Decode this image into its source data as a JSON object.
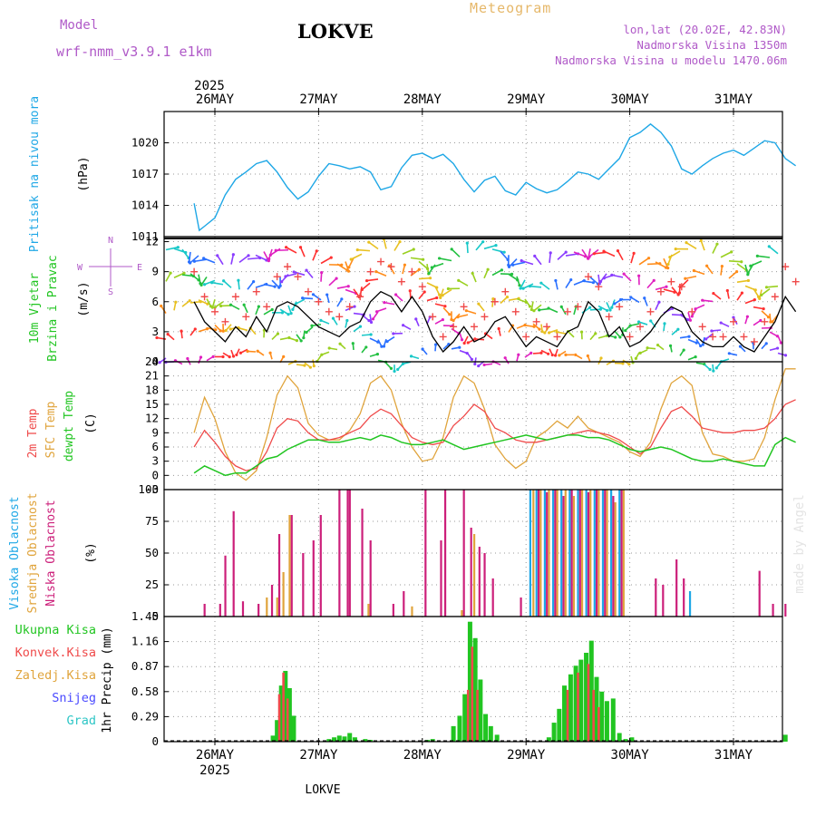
{
  "header": {
    "model_label": "Model",
    "model_name": "wrf-nmm_v3.9.1  e1km",
    "station": "LOKVE",
    "title": "Meteogram",
    "coords": "lon,lat (20.02E, 42.83N)",
    "elevation": "Nadmorska Visina 1350m",
    "model_elevation": "Nadmorska Visina u modelu 1470.06m"
  },
  "footer": {
    "station": "LOKVE",
    "watermark": "made by Angel"
  },
  "colors": {
    "pressure": "#1ea7e6",
    "temp2m": "#ef4a4a",
    "sfc": "#e0a43c",
    "dew": "#21c521",
    "wind": "#000000",
    "gust": "#ef4a4a",
    "high": "#1ea7e6",
    "mid": "#e0a43c",
    "low": "#cc1f7a",
    "precip": "#21c521",
    "conv": "#ef4a4a"
  },
  "time_axis": {
    "year": "2025",
    "days": [
      "26MAY",
      "27MAY",
      "28MAY",
      "29MAY",
      "30MAY",
      "31MAY"
    ]
  },
  "compass": {
    "n": "N",
    "s": "S",
    "w": "W",
    "e": "E"
  },
  "panels": {
    "pressure": {
      "label": "Pritisak na nivou mora",
      "unit": "(hPa)"
    },
    "wind": {
      "label1": "10m Vjetar",
      "label2": "Brzina i Pravac",
      "unit": "(m/s)"
    },
    "temp": {
      "label1": "2m Temp",
      "label2": "SFC Temp",
      "label3": "dewpt Temp",
      "unit": "(C)"
    },
    "cloud": {
      "label1": "Visoka Oblacnost",
      "label2": "Srednja Oblacnost",
      "label3": "Niska Oblacnost",
      "unit": "(%)"
    },
    "precip": {
      "legend": [
        "Ukupna Kisa",
        "Konvek.Kisa",
        "Zaledj.Kisa",
        "Snijeg",
        "Grad"
      ],
      "unit": "1hr Precip (mm)"
    }
  },
  "chart_data": [
    {
      "type": "line",
      "name": "pressure",
      "x_unit": "days since 26MAY 00UTC",
      "ylim": [
        1011,
        1023
      ],
      "yticks": [
        1011,
        1014,
        1017,
        1020
      ],
      "x": [
        -0.2,
        -0.15,
        -0.1,
        0.0,
        0.1,
        0.2,
        0.3,
        0.4,
        0.5,
        0.6,
        0.7,
        0.8,
        0.9,
        1.0,
        1.1,
        1.2,
        1.3,
        1.4,
        1.5,
        1.6,
        1.7,
        1.8,
        1.9,
        2.0,
        2.1,
        2.2,
        2.3,
        2.4,
        2.5,
        2.6,
        2.7,
        2.8,
        2.9,
        3.0,
        3.1,
        3.2,
        3.3,
        3.4,
        3.5,
        3.6,
        3.7,
        3.8,
        3.9,
        4.0,
        4.1,
        4.2,
        4.3,
        4.4,
        4.5,
        4.6,
        4.7,
        4.8,
        4.9,
        5.0,
        5.1,
        5.2,
        5.3,
        5.4,
        5.5,
        5.6
      ],
      "series": [
        {
          "name": "pressure",
          "values": [
            1014.2,
            1011.6,
            1012.0,
            1012.8,
            1015.0,
            1016.5,
            1017.2,
            1018.0,
            1018.3,
            1017.2,
            1015.7,
            1014.6,
            1015.3,
            1016.8,
            1018.0,
            1017.8,
            1017.5,
            1017.7,
            1017.2,
            1015.5,
            1015.8,
            1017.6,
            1018.8,
            1019.0,
            1018.5,
            1018.9,
            1018.0,
            1016.5,
            1015.3,
            1016.4,
            1016.8,
            1015.4,
            1015.0,
            1016.2,
            1015.6,
            1015.2,
            1015.5,
            1016.3,
            1017.2,
            1017.0,
            1016.5,
            1017.5,
            1018.5,
            1020.5,
            1021.0,
            1021.8,
            1021.0,
            1019.7,
            1017.5,
            1017.0,
            1017.8,
            1018.5,
            1019.0,
            1019.3,
            1018.8,
            1019.5,
            1020.2,
            1020.0,
            1018.5,
            1017.8
          ]
        }
      ]
    },
    {
      "type": "line",
      "name": "wind",
      "ylim": [
        0,
        12.5
      ],
      "yticks": [
        0,
        3,
        6,
        9,
        12
      ],
      "x": [
        -0.2,
        -0.1,
        0.0,
        0.1,
        0.2,
        0.3,
        0.4,
        0.5,
        0.6,
        0.7,
        0.8,
        0.9,
        1.0,
        1.1,
        1.2,
        1.3,
        1.4,
        1.5,
        1.6,
        1.7,
        1.8,
        1.9,
        2.0,
        2.1,
        2.2,
        2.3,
        2.4,
        2.5,
        2.6,
        2.7,
        2.8,
        2.9,
        3.0,
        3.1,
        3.2,
        3.3,
        3.4,
        3.5,
        3.6,
        3.7,
        3.8,
        3.9,
        4.0,
        4.1,
        4.2,
        4.3,
        4.4,
        4.5,
        4.6,
        4.7,
        4.8,
        4.9,
        5.0,
        5.1,
        5.2,
        5.3,
        5.4,
        5.5,
        5.6
      ],
      "series": [
        {
          "name": "speed",
          "values": [
            6.0,
            4.0,
            3.0,
            2.0,
            3.5,
            2.5,
            4.5,
            3.0,
            5.5,
            6.0,
            5.5,
            4.5,
            3.5,
            3.0,
            2.5,
            3.5,
            4.0,
            6.0,
            7.0,
            6.5,
            5.0,
            6.5,
            5.0,
            2.5,
            1.0,
            2.0,
            3.5,
            2.0,
            2.5,
            4.0,
            4.5,
            3.0,
            1.5,
            2.5,
            2.0,
            1.5,
            3.0,
            3.5,
            6.0,
            5.0,
            2.5,
            3.5,
            1.5,
            2.0,
            3.0,
            4.5,
            5.5,
            5.0,
            3.0,
            2.0,
            1.5,
            1.5,
            2.5,
            1.5,
            1.0,
            2.5,
            4.0,
            6.5,
            5.0
          ]
        },
        {
          "name": "gust",
          "values": [
            9.0,
            6.5,
            5.0,
            4.0,
            6.5,
            4.5,
            7.0,
            5.5,
            8.5,
            9.5,
            8.5,
            7.0,
            6.0,
            5.0,
            4.5,
            5.5,
            6.5,
            9.0,
            10.0,
            9.5,
            8.0,
            9.0,
            7.5,
            4.5,
            2.5,
            3.5,
            5.5,
            3.5,
            4.5,
            6.0,
            7.0,
            5.0,
            2.5,
            4.0,
            3.5,
            2.5,
            5.0,
            5.5,
            8.5,
            7.5,
            4.5,
            5.5,
            2.5,
            3.5,
            5.0,
            7.0,
            8.0,
            7.5,
            5.0,
            3.5,
            2.5,
            2.5,
            4.0,
            2.5,
            2.0,
            4.0,
            6.5,
            9.5,
            8.0
          ]
        }
      ]
    },
    {
      "type": "line",
      "name": "temperature",
      "ylim": [
        -3,
        24
      ],
      "yticks": [
        -3,
        0,
        3,
        6,
        9,
        12,
        15,
        18,
        21,
        24
      ],
      "x": [
        -0.2,
        -0.1,
        0.0,
        0.1,
        0.2,
        0.3,
        0.4,
        0.5,
        0.6,
        0.7,
        0.8,
        0.9,
        1.0,
        1.1,
        1.2,
        1.3,
        1.4,
        1.5,
        1.6,
        1.7,
        1.8,
        1.9,
        2.0,
        2.1,
        2.2,
        2.3,
        2.4,
        2.5,
        2.6,
        2.7,
        2.8,
        2.9,
        3.0,
        3.1,
        3.2,
        3.3,
        3.4,
        3.5,
        3.6,
        3.7,
        3.8,
        3.9,
        4.0,
        4.1,
        4.2,
        4.3,
        4.4,
        4.5,
        4.6,
        4.7,
        4.8,
        4.9,
        5.0,
        5.1,
        5.2,
        5.3,
        5.4,
        5.5,
        5.6
      ],
      "series": [
        {
          "name": "2m",
          "values": [
            6.0,
            9.5,
            7.0,
            4.0,
            2.0,
            1.0,
            1.5,
            5.0,
            10.0,
            12.0,
            11.5,
            9.0,
            7.5,
            7.5,
            8.0,
            9.0,
            10.0,
            12.5,
            14.0,
            13.0,
            10.5,
            8.0,
            7.0,
            6.5,
            7.0,
            10.5,
            12.5,
            15.0,
            13.5,
            10.0,
            9.0,
            7.5,
            7.0,
            7.0,
            7.5,
            8.0,
            8.5,
            9.0,
            9.5,
            9.0,
            8.5,
            7.5,
            6.0,
            4.5,
            6.0,
            10.0,
            13.5,
            14.5,
            12.5,
            10.0,
            9.5,
            9.0,
            9.0,
            9.5,
            9.5,
            10.0,
            12.0,
            15.0,
            16.0
          ]
        },
        {
          "name": "sfc",
          "values": [
            9.0,
            16.5,
            12.0,
            5.0,
            0.5,
            -1.0,
            1.0,
            8.0,
            17.0,
            21.0,
            18.5,
            11.0,
            8.5,
            7.5,
            7.5,
            9.5,
            13.0,
            19.5,
            21.0,
            18.0,
            11.0,
            6.0,
            3.0,
            3.5,
            8.0,
            16.5,
            21.0,
            19.5,
            14.0,
            6.5,
            3.5,
            1.5,
            3.0,
            8.0,
            9.5,
            11.5,
            10.0,
            12.5,
            10.0,
            9.0,
            8.0,
            7.0,
            5.0,
            4.0,
            7.0,
            14.0,
            19.5,
            21.0,
            19.0,
            9.0,
            4.5,
            4.0,
            3.0,
            3.0,
            3.5,
            8.0,
            16.0,
            22.5,
            22.5
          ]
        },
        {
          "name": "dew",
          "values": [
            0.5,
            2.0,
            1.0,
            0.0,
            0.5,
            0.5,
            2.0,
            3.5,
            4.0,
            5.5,
            6.5,
            7.5,
            7.5,
            7.0,
            7.0,
            7.5,
            8.0,
            7.5,
            8.5,
            8.0,
            7.0,
            6.5,
            6.5,
            7.0,
            7.5,
            6.5,
            5.5,
            6.0,
            6.5,
            7.0,
            7.5,
            8.0,
            8.5,
            8.0,
            7.5,
            8.0,
            8.5,
            8.5,
            8.0,
            8.0,
            7.5,
            6.5,
            5.5,
            5.0,
            5.5,
            6.0,
            5.5,
            4.5,
            3.5,
            3.0,
            3.0,
            3.5,
            3.0,
            2.5,
            2.0,
            2.0,
            6.5,
            8.0,
            7.0
          ]
        }
      ]
    },
    {
      "type": "bar",
      "name": "cloud",
      "ylim": [
        0,
        100
      ],
      "yticks": [
        0,
        25,
        50,
        75,
        100
      ],
      "series": [
        {
          "name": "high",
          "x": [
            3.04,
            3.1,
            3.18,
            3.26,
            3.34,
            3.42,
            3.5,
            3.58,
            3.66,
            3.74,
            3.82,
            3.9,
            4.58
          ],
          "values": [
            100,
            100,
            100,
            100,
            100,
            100,
            100,
            100,
            100,
            100,
            100,
            100,
            20
          ]
        },
        {
          "name": "mid",
          "x": [
            0.5,
            0.6,
            0.66,
            0.72,
            1.48,
            1.9,
            2.38,
            2.5,
            3.07,
            3.14,
            3.22,
            3.3,
            3.38,
            3.46,
            3.54,
            3.62,
            3.7,
            3.78,
            3.86,
            3.94
          ],
          "values": [
            15,
            15,
            35,
            80,
            10,
            8,
            5,
            65,
            100,
            100,
            100,
            100,
            100,
            95,
            100,
            100,
            100,
            100,
            90,
            100
          ]
        },
        {
          "name": "low",
          "x": [
            -0.1,
            0.05,
            0.1,
            0.18,
            0.27,
            0.42,
            0.55,
            0.62,
            0.74,
            0.85,
            0.95,
            1.02,
            1.2,
            1.28,
            1.3,
            1.42,
            1.5,
            1.72,
            1.82,
            2.03,
            2.18,
            2.22,
            2.4,
            2.47,
            2.55,
            2.6,
            2.68,
            2.95,
            3.12,
            3.2,
            3.28,
            3.36,
            3.44,
            3.52,
            3.6,
            3.68,
            3.76,
            3.84,
            3.92,
            4.25,
            4.32,
            4.45,
            4.52,
            5.25,
            5.38,
            5.5
          ],
          "values": [
            10,
            10,
            48,
            83,
            12,
            10,
            25,
            65,
            80,
            50,
            60,
            80,
            100,
            100,
            100,
            85,
            60,
            10,
            20,
            100,
            60,
            100,
            100,
            70,
            55,
            50,
            30,
            15,
            100,
            98,
            100,
            95,
            100,
            100,
            98,
            100,
            100,
            95,
            100,
            30,
            25,
            45,
            30,
            36,
            10,
            10
          ]
        }
      ]
    },
    {
      "type": "bar",
      "name": "precip",
      "ylim": [
        0,
        1.45
      ],
      "yticks": [
        0,
        0.29,
        0.58,
        0.87,
        1.16,
        1.45
      ],
      "series": [
        {
          "name": "total",
          "x": [
            0.56,
            0.6,
            0.64,
            0.68,
            0.72,
            0.76,
            1.1,
            1.15,
            1.2,
            1.25,
            1.3,
            1.35,
            1.45,
            1.5,
            2.05,
            2.1,
            2.3,
            2.36,
            2.41,
            2.46,
            2.51,
            2.56,
            2.61,
            2.66,
            2.72,
            3.22,
            3.27,
            3.32,
            3.37,
            3.43,
            3.48,
            3.53,
            3.58,
            3.63,
            3.68,
            3.73,
            3.78,
            3.84,
            3.9,
            3.96,
            4.02,
            5.5
          ],
          "values": [
            0.07,
            0.25,
            0.65,
            0.82,
            0.62,
            0.3,
            0.03,
            0.05,
            0.07,
            0.06,
            0.1,
            0.05,
            0.03,
            0.02,
            0.02,
            0.03,
            0.18,
            0.3,
            0.55,
            1.39,
            1.2,
            0.72,
            0.32,
            0.18,
            0.08,
            0.05,
            0.22,
            0.38,
            0.65,
            0.78,
            0.88,
            0.95,
            1.03,
            1.17,
            0.75,
            0.58,
            0.47,
            0.5,
            0.1,
            0.03,
            0.05,
            0.08
          ]
        },
        {
          "name": "convective",
          "x": [
            0.62,
            0.66,
            0.7,
            2.44,
            2.48,
            2.53,
            3.4,
            3.5,
            3.6,
            3.65,
            3.7
          ],
          "values": [
            0.55,
            0.8,
            0.5,
            0.6,
            1.1,
            0.6,
            0.6,
            0.8,
            0.9,
            0.6,
            0.4
          ]
        }
      ]
    }
  ]
}
